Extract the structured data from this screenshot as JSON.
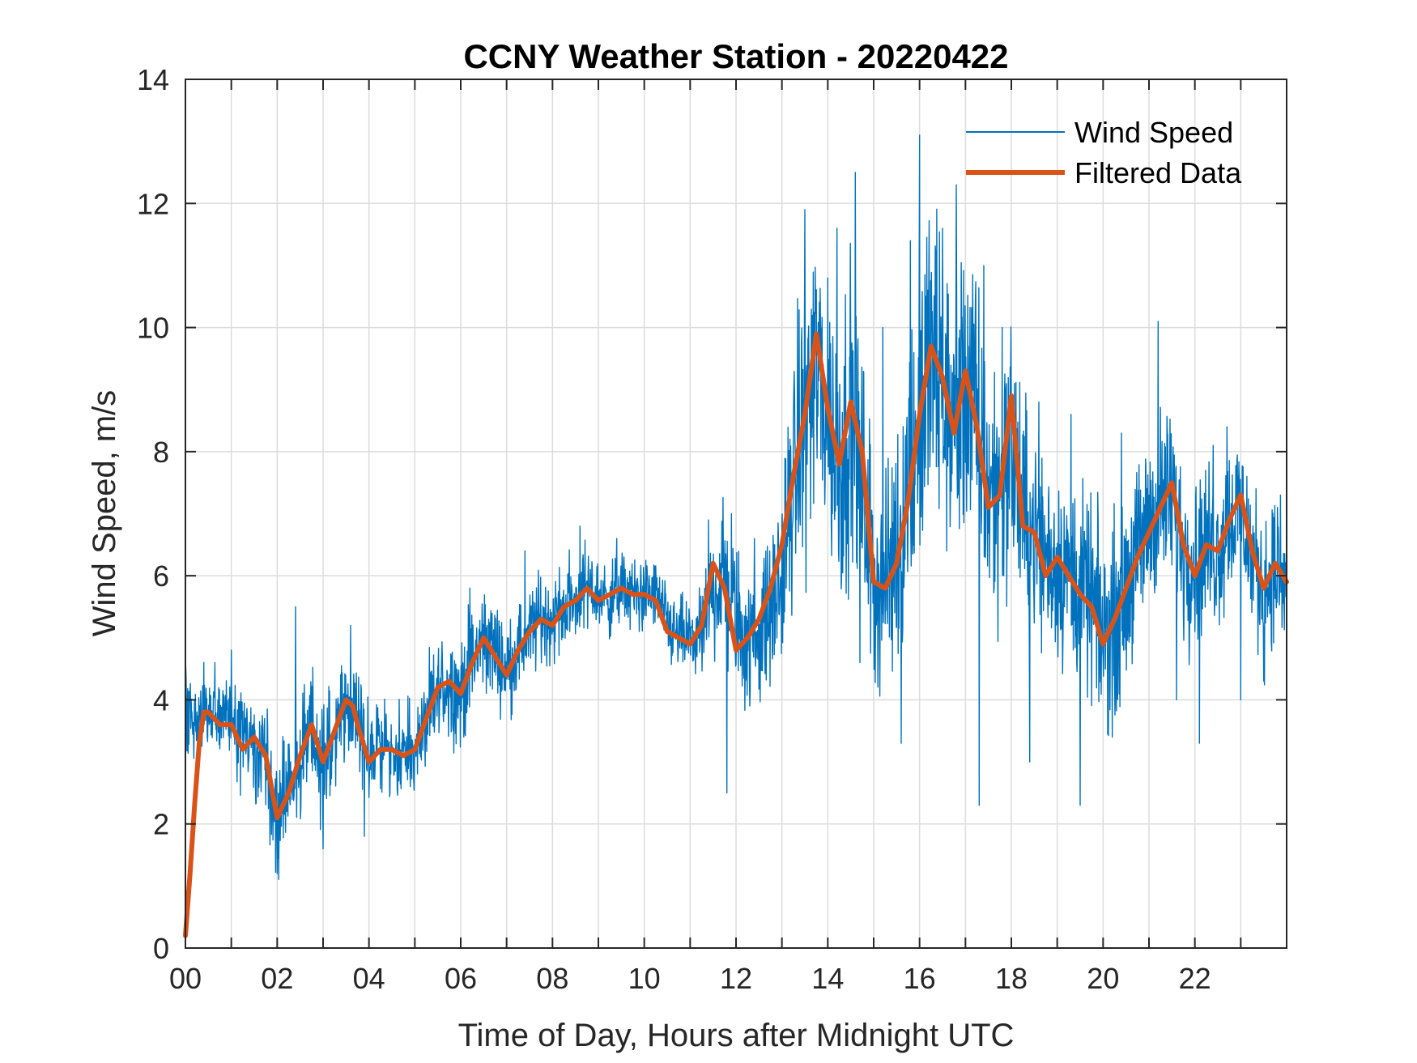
{
  "chart_data": {
    "type": "line",
    "title": "CCNY Weather Station - 20220422",
    "xlabel": "Time of Day, Hours after Midnight UTC",
    "ylabel": "Wind Speed, m/s",
    "xlim": [
      0,
      24
    ],
    "ylim": [
      0,
      14
    ],
    "grid": true,
    "legend_position": "top-right",
    "x_ticks": [
      0,
      2,
      4,
      6,
      8,
      10,
      12,
      14,
      16,
      18,
      20,
      22
    ],
    "x_tick_labels": [
      "00",
      "02",
      "04",
      "06",
      "08",
      "10",
      "12",
      "14",
      "16",
      "18",
      "20",
      "22"
    ],
    "x_minor_ticks": [
      1,
      3,
      5,
      7,
      9,
      11,
      13,
      15,
      17,
      19,
      21,
      23
    ],
    "y_ticks": [
      0,
      2,
      4,
      6,
      8,
      10,
      12,
      14
    ],
    "y_tick_labels": [
      "0",
      "2",
      "4",
      "6",
      "8",
      "10",
      "12",
      "14"
    ],
    "series": [
      {
        "name": "Wind Speed",
        "color": "#0072BD",
        "style": "thin",
        "envelope_note": "high-frequency raw samples; center and spread read from plot",
        "x": [
          0,
          0.25,
          0.5,
          0.75,
          1,
          1.25,
          1.5,
          1.75,
          2,
          2.25,
          2.5,
          2.75,
          3,
          3.25,
          3.5,
          3.75,
          4,
          4.25,
          4.5,
          4.75,
          5,
          5.25,
          5.5,
          5.75,
          6,
          6.25,
          6.5,
          6.75,
          7,
          7.25,
          7.5,
          7.75,
          8,
          8.25,
          8.5,
          8.75,
          9,
          9.25,
          9.5,
          9.75,
          10,
          10.25,
          10.5,
          10.75,
          11,
          11.25,
          11.5,
          11.75,
          12,
          12.25,
          12.5,
          12.75,
          13,
          13.25,
          13.5,
          13.75,
          14,
          14.25,
          14.5,
          14.75,
          15,
          15.25,
          15.5,
          15.75,
          16,
          16.25,
          16.5,
          16.75,
          17,
          17.25,
          17.5,
          17.75,
          18,
          18.25,
          18.5,
          18.75,
          19,
          19.25,
          19.5,
          19.75,
          20,
          20.25,
          20.5,
          20.75,
          21,
          21.25,
          21.5,
          21.75,
          22,
          22.25,
          22.5,
          22.75,
          23,
          23.25,
          23.5,
          23.75,
          24
        ],
        "center": [
          3.9,
          3.7,
          3.8,
          3.7,
          3.6,
          3.3,
          3.4,
          3.1,
          2.2,
          2.6,
          3.1,
          3.5,
          3.0,
          3.4,
          3.8,
          3.8,
          3.1,
          3.3,
          3.2,
          3.1,
          3.2,
          3.6,
          4.1,
          4.3,
          4.1,
          4.6,
          5.0,
          4.8,
          4.5,
          4.8,
          5.1,
          5.3,
          5.3,
          5.5,
          5.6,
          5.8,
          5.7,
          5.6,
          5.8,
          5.7,
          5.7,
          5.7,
          5.2,
          5.0,
          5.0,
          5.0,
          5.8,
          6.0,
          5.3,
          4.9,
          5.1,
          5.4,
          6.0,
          7.5,
          8.6,
          9.4,
          8.6,
          7.8,
          8.6,
          7.5,
          6.0,
          5.8,
          6.5,
          7.5,
          8.5,
          9.5,
          9.0,
          8.4,
          9.1,
          8.5,
          7.3,
          7.4,
          8.2,
          7.0,
          6.7,
          6.3,
          6.2,
          6.1,
          5.8,
          5.6,
          5.0,
          5.4,
          5.8,
          6.3,
          6.9,
          7.2,
          7.3,
          6.4,
          6.2,
          6.5,
          6.4,
          6.9,
          7.1,
          6.3,
          5.8,
          6.1,
          5.7,
          5.8
        ],
        "spread": [
          0.6,
          0.6,
          0.6,
          0.6,
          0.6,
          0.7,
          0.7,
          0.8,
          0.9,
          0.9,
          0.9,
          0.8,
          0.9,
          0.9,
          0.8,
          0.7,
          0.7,
          0.6,
          0.6,
          0.6,
          0.6,
          0.7,
          0.7,
          0.7,
          0.7,
          0.8,
          0.7,
          0.7,
          0.6,
          0.6,
          0.6,
          0.6,
          0.6,
          0.6,
          0.6,
          0.6,
          0.5,
          0.5,
          0.5,
          0.5,
          0.5,
          0.5,
          0.5,
          0.5,
          0.5,
          0.6,
          0.9,
          1.1,
          1.0,
          0.9,
          0.9,
          1.0,
          1.2,
          1.6,
          1.9,
          2.0,
          2.0,
          2.0,
          2.0,
          1.8,
          1.5,
          1.5,
          1.7,
          2.0,
          2.2,
          2.2,
          2.1,
          2.0,
          2.0,
          1.9,
          1.9,
          1.8,
          1.8,
          1.5,
          1.4,
          1.3,
          1.3,
          1.3,
          1.3,
          1.3,
          1.3,
          1.3,
          1.3,
          1.2,
          1.2,
          1.2,
          1.2,
          1.2,
          1.1,
          1.1,
          1.1,
          1.1,
          1.1,
          1.0,
          1.0,
          1.0,
          1.0,
          1.0
        ],
        "notable_peaks": [
          {
            "x": 0.4,
            "y": 4.6
          },
          {
            "x": 1.0,
            "y": 4.8
          },
          {
            "x": 2.4,
            "y": 5.5
          },
          {
            "x": 3.0,
            "y": 4.8
          },
          {
            "x": 3.6,
            "y": 5.2
          },
          {
            "x": 6.2,
            "y": 5.8
          },
          {
            "x": 7.4,
            "y": 6.4
          },
          {
            "x": 8.6,
            "y": 6.8
          },
          {
            "x": 9.4,
            "y": 6.6
          },
          {
            "x": 10.8,
            "y": 5.7
          },
          {
            "x": 11.4,
            "y": 6.9
          },
          {
            "x": 11.9,
            "y": 7.0
          },
          {
            "x": 12.4,
            "y": 6.6
          },
          {
            "x": 13.5,
            "y": 11.9
          },
          {
            "x": 14.0,
            "y": 10.8
          },
          {
            "x": 14.2,
            "y": 11.6
          },
          {
            "x": 14.6,
            "y": 12.5
          },
          {
            "x": 15.2,
            "y": 10.0
          },
          {
            "x": 15.8,
            "y": 11.4
          },
          {
            "x": 16.0,
            "y": 13.1
          },
          {
            "x": 16.5,
            "y": 11.6
          },
          {
            "x": 16.8,
            "y": 12.3
          },
          {
            "x": 17.4,
            "y": 11.0
          },
          {
            "x": 17.8,
            "y": 10.0
          },
          {
            "x": 18.6,
            "y": 8.8
          },
          {
            "x": 19.3,
            "y": 8.6
          },
          {
            "x": 20.4,
            "y": 8.3
          },
          {
            "x": 21.2,
            "y": 10.1
          },
          {
            "x": 22.4,
            "y": 8.1
          },
          {
            "x": 22.7,
            "y": 8.4
          },
          {
            "x": 23.8,
            "y": 7.1
          }
        ],
        "notable_dips": [
          {
            "x": 2.0,
            "y": 1.2
          },
          {
            "x": 3.0,
            "y": 1.6
          },
          {
            "x": 3.9,
            "y": 1.8
          },
          {
            "x": 4.9,
            "y": 2.6
          },
          {
            "x": 11.8,
            "y": 2.5
          },
          {
            "x": 12.3,
            "y": 3.9
          },
          {
            "x": 14.7,
            "y": 4.6
          },
          {
            "x": 15.6,
            "y": 3.3
          },
          {
            "x": 17.3,
            "y": 2.3
          },
          {
            "x": 18.4,
            "y": 3.0
          },
          {
            "x": 19.5,
            "y": 2.3
          },
          {
            "x": 20.2,
            "y": 3.4
          },
          {
            "x": 21.6,
            "y": 4.0
          },
          {
            "x": 22.1,
            "y": 3.3
          },
          {
            "x": 23.0,
            "y": 4.0
          },
          {
            "x": 23.5,
            "y": 4.3
          }
        ]
      },
      {
        "name": "Filtered Data",
        "color": "#D95319",
        "style": "thick",
        "x": [
          0,
          0.1,
          0.2,
          0.3,
          0.4,
          0.5,
          0.75,
          1.0,
          1.25,
          1.5,
          1.75,
          2.0,
          2.25,
          2.5,
          2.75,
          3.0,
          3.25,
          3.5,
          3.65,
          3.75,
          4.0,
          4.25,
          4.5,
          4.75,
          5.0,
          5.25,
          5.5,
          5.75,
          6.0,
          6.25,
          6.5,
          6.75,
          7.0,
          7.25,
          7.5,
          7.75,
          8.0,
          8.25,
          8.5,
          8.75,
          9.0,
          9.25,
          9.5,
          9.75,
          10.0,
          10.25,
          10.5,
          10.75,
          11.0,
          11.25,
          11.5,
          11.75,
          12.0,
          12.25,
          12.5,
          12.75,
          13.0,
          13.25,
          13.5,
          13.75,
          14.0,
          14.25,
          14.5,
          14.75,
          15.0,
          15.25,
          15.5,
          15.75,
          16.0,
          16.25,
          16.5,
          16.75,
          17.0,
          17.25,
          17.5,
          17.75,
          18.0,
          18.25,
          18.5,
          18.75,
          19.0,
          19.25,
          19.5,
          19.75,
          20.0,
          20.25,
          20.5,
          20.75,
          21.0,
          21.25,
          21.5,
          21.75,
          22.0,
          22.25,
          22.5,
          22.75,
          23.0,
          23.25,
          23.5,
          23.75,
          24.0
        ],
        "y": [
          0.2,
          1.2,
          2.3,
          3.3,
          3.8,
          3.8,
          3.6,
          3.6,
          3.2,
          3.4,
          3.1,
          2.1,
          2.5,
          3.1,
          3.6,
          3.0,
          3.5,
          4.0,
          3.9,
          3.6,
          3.0,
          3.2,
          3.2,
          3.1,
          3.2,
          3.7,
          4.2,
          4.3,
          4.1,
          4.6,
          5.0,
          4.7,
          4.4,
          4.8,
          5.1,
          5.3,
          5.2,
          5.5,
          5.6,
          5.8,
          5.6,
          5.7,
          5.8,
          5.7,
          5.7,
          5.6,
          5.1,
          5.0,
          4.9,
          5.2,
          6.2,
          5.8,
          4.8,
          5.0,
          5.3,
          5.8,
          6.5,
          7.6,
          8.6,
          9.9,
          8.7,
          7.8,
          8.8,
          8.0,
          5.9,
          5.8,
          6.2,
          7.2,
          8.6,
          9.7,
          9.2,
          8.3,
          9.3,
          8.4,
          7.1,
          7.3,
          8.9,
          6.8,
          6.7,
          6.0,
          6.3,
          6.0,
          5.7,
          5.5,
          4.9,
          5.3,
          5.8,
          6.3,
          6.7,
          7.1,
          7.5,
          6.5,
          6.0,
          6.5,
          6.4,
          6.9,
          7.3,
          6.4,
          5.8,
          6.2,
          5.9
        ]
      }
    ]
  }
}
